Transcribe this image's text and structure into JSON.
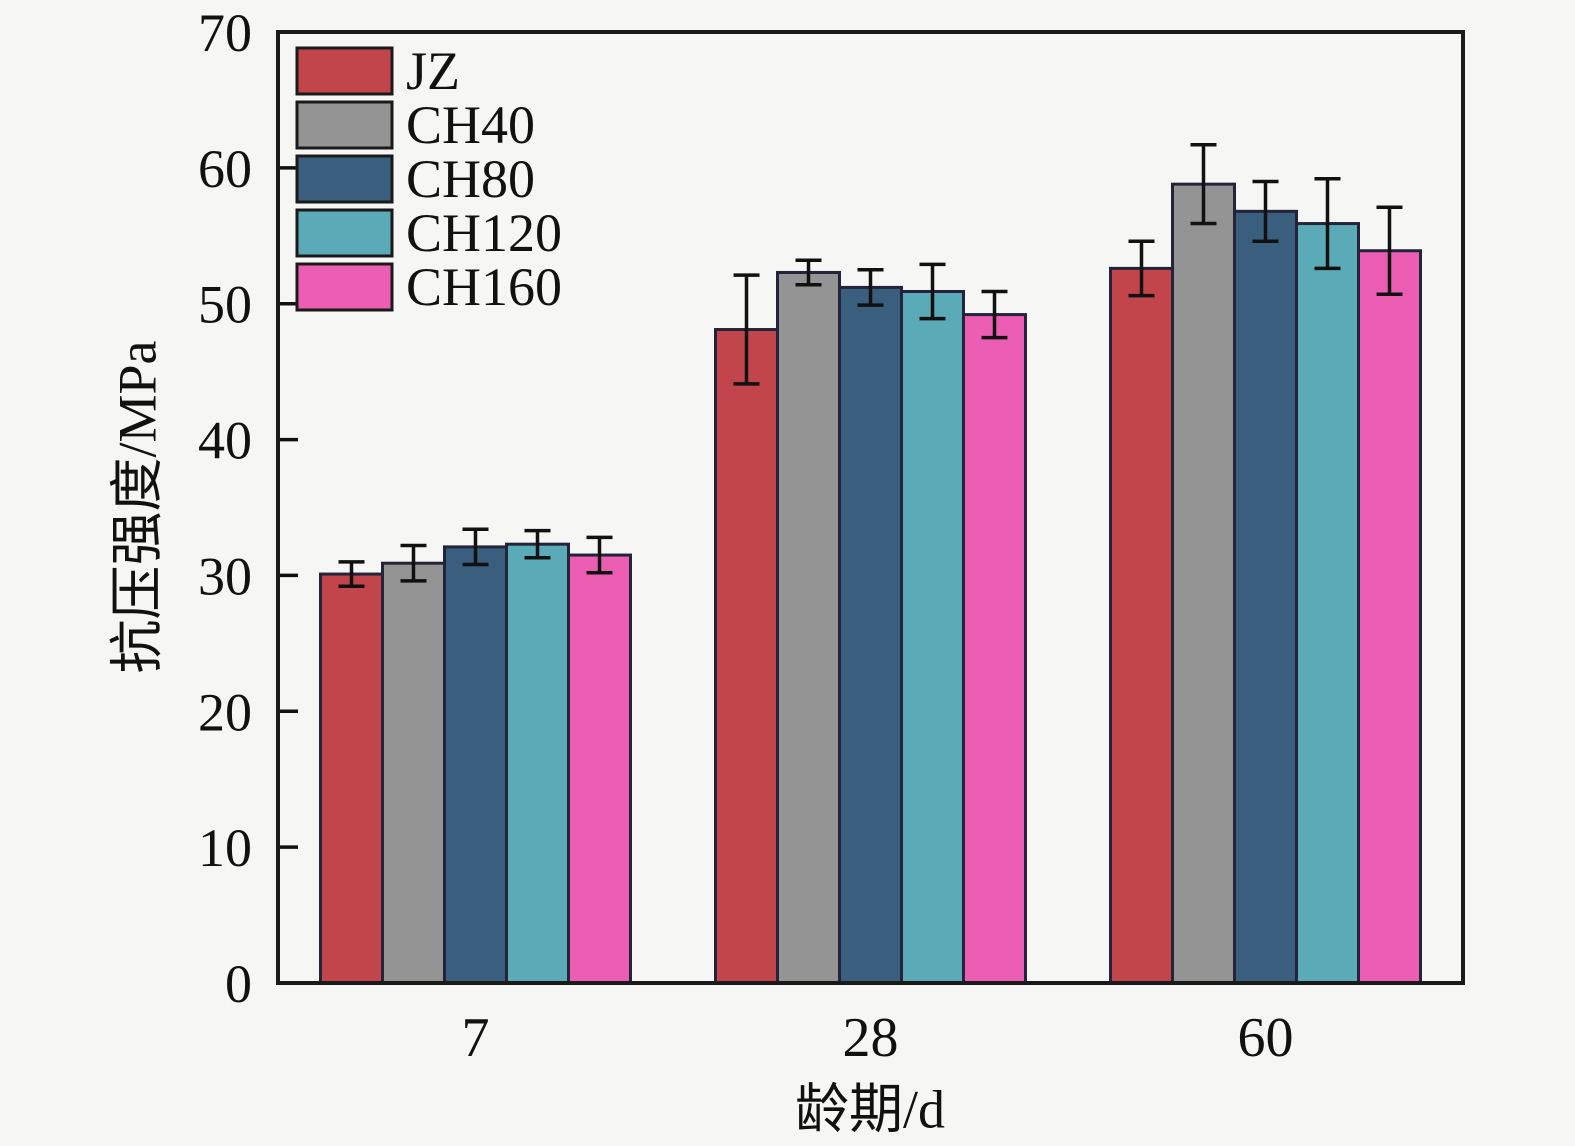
{
  "figure": {
    "background": "#f6f6f4",
    "frame_color": "#1a1a1a",
    "tick_color": "#111111"
  },
  "chart_data": {
    "type": "bar",
    "title": "",
    "xlabel": "龄期/d",
    "ylabel": "抗压强度/MPa",
    "categories": [
      "7",
      "28",
      "60"
    ],
    "ylim": [
      0,
      70
    ],
    "yticks": [
      0,
      10,
      20,
      30,
      40,
      50,
      60,
      70
    ],
    "grid": false,
    "legend_position": "upper-left",
    "error_bars": true,
    "error_bar_color": "#111111",
    "bar_outline_color": "#23233a",
    "series": [
      {
        "name": "JZ",
        "color": "#c3454c",
        "values": [
          30.1,
          48.1,
          52.6
        ],
        "errors": [
          0.9,
          4.0,
          2.0
        ]
      },
      {
        "name": "CH40",
        "color": "#949494",
        "values": [
          30.9,
          52.3,
          58.8
        ],
        "errors": [
          1.3,
          0.9,
          2.9
        ]
      },
      {
        "name": "CH80",
        "color": "#3a5e7e",
        "values": [
          32.1,
          51.2,
          56.8
        ],
        "errors": [
          1.3,
          1.3,
          2.2
        ]
      },
      {
        "name": "CH120",
        "color": "#5baab7",
        "values": [
          32.3,
          50.9,
          55.9
        ],
        "errors": [
          1.0,
          2.0,
          3.3
        ]
      },
      {
        "name": "CH160",
        "color": "#ec5eb3",
        "values": [
          31.5,
          49.2,
          53.9
        ],
        "errors": [
          1.3,
          1.7,
          3.2
        ]
      }
    ]
  }
}
